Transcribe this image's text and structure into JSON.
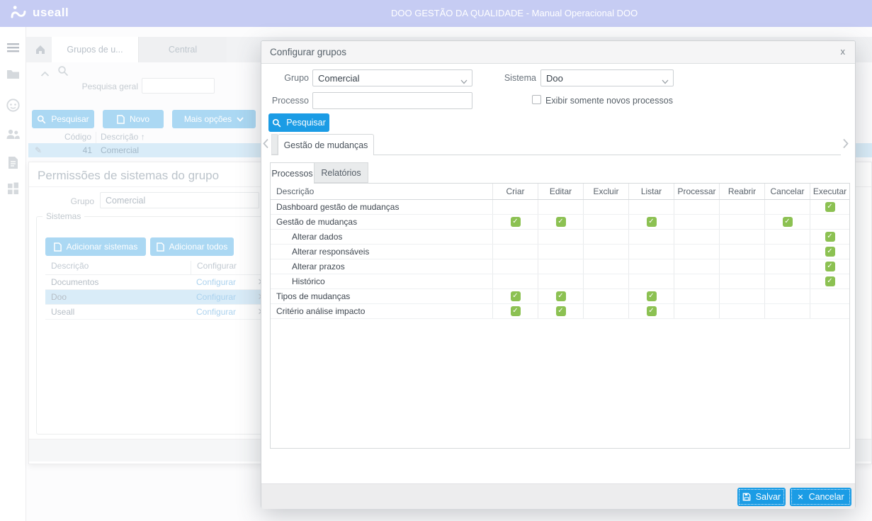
{
  "colors": {
    "navbar": "#c6ccf3",
    "accent_blue": "#1b9ce5",
    "washed_blue": "#abd8f3",
    "check_green": "#8cc152",
    "selection_blue": "#d9ecf8"
  },
  "icons": {
    "check": "✓",
    "close": "x",
    "delete": "✕",
    "pencil": "✎",
    "sort_up": "↑",
    "cancel_x": "✕"
  },
  "navbar": {
    "brand": "useall",
    "title": "DOO GESTÃO DA QUALIDADE - Manual Operacional DOO"
  },
  "sidebar": {
    "items": [
      "menu",
      "folder",
      "profile",
      "users",
      "document",
      "apps"
    ]
  },
  "background": {
    "tabs": [
      {
        "label": "Grupos de u...",
        "active": true
      },
      {
        "label": "Central",
        "active": false
      }
    ],
    "search": {
      "label": "Pesquisa geral",
      "value": ""
    },
    "toolbar": {
      "pesquisar": "Pesquisar",
      "novo": "Novo",
      "mais_opcoes": "Mais opções"
    },
    "grid": {
      "col_codigo": "Código",
      "col_descricao": "Descrição",
      "sort_indicator": "↑",
      "selected_row": {
        "codigo": "41",
        "descricao": "Comercial"
      }
    },
    "panel": {
      "title": "Permissões de sistemas do grupo",
      "grupo_label": "Grupo",
      "grupo_value": "Comercial",
      "fieldset_legend": "Sistemas",
      "adicionar_sistemas": "Adicionar sistemas",
      "adicionar_todos": "Adicionar todos",
      "grid": {
        "col_descricao": "Descrição",
        "col_configurar": "Configurar",
        "rows": [
          {
            "descricao": "Documentos",
            "action": "Configurar",
            "selected": false
          },
          {
            "descricao": "Doo",
            "action": "Configurar",
            "selected": true
          },
          {
            "descricao": "Useall",
            "action": "Configurar",
            "selected": false
          }
        ]
      }
    }
  },
  "modal": {
    "title": "Configurar grupos",
    "close": "x",
    "form": {
      "grupo_label": "Grupo",
      "grupo_value": "Comercial",
      "sistema_label": "Sistema",
      "sistema_value": "Doo",
      "processo_label": "Processo",
      "processo_value": "",
      "only_new_label": "Exibir somente novos processos",
      "only_new_checked": false,
      "pesquisar": "Pesquisar"
    },
    "group_tab": "Gestão de mudanças",
    "subtabs": [
      {
        "label": "Processos",
        "active": true
      },
      {
        "label": "Relatórios",
        "active": false
      }
    ],
    "grid": {
      "columns": [
        "Descrição",
        "Criar",
        "Editar",
        "Excluir",
        "Listar",
        "Processar",
        "Reabrir",
        "Cancelar",
        "Executar"
      ],
      "rows": [
        {
          "label": "Dashboard gestão de mudanças",
          "indent": false,
          "checks": [
            false,
            false,
            false,
            false,
            false,
            false,
            false,
            true
          ]
        },
        {
          "label": "Gestão de mudanças",
          "indent": false,
          "checks": [
            true,
            true,
            false,
            true,
            false,
            false,
            true,
            false
          ]
        },
        {
          "label": "Alterar dados",
          "indent": true,
          "checks": [
            false,
            false,
            false,
            false,
            false,
            false,
            false,
            true
          ]
        },
        {
          "label": "Alterar responsáveis",
          "indent": true,
          "checks": [
            false,
            false,
            false,
            false,
            false,
            false,
            false,
            true
          ]
        },
        {
          "label": "Alterar prazos",
          "indent": true,
          "checks": [
            false,
            false,
            false,
            false,
            false,
            false,
            false,
            true
          ]
        },
        {
          "label": "Histórico",
          "indent": true,
          "checks": [
            false,
            false,
            false,
            false,
            false,
            false,
            false,
            true
          ]
        },
        {
          "label": "Tipos de mudanças",
          "indent": false,
          "checks": [
            true,
            true,
            false,
            true,
            false,
            false,
            false,
            false
          ]
        },
        {
          "label": "Critério análise impacto",
          "indent": false,
          "checks": [
            true,
            true,
            false,
            true,
            false,
            false,
            false,
            false
          ]
        }
      ]
    },
    "footer": {
      "salvar": "Salvar",
      "cancelar": "Cancelar"
    }
  }
}
